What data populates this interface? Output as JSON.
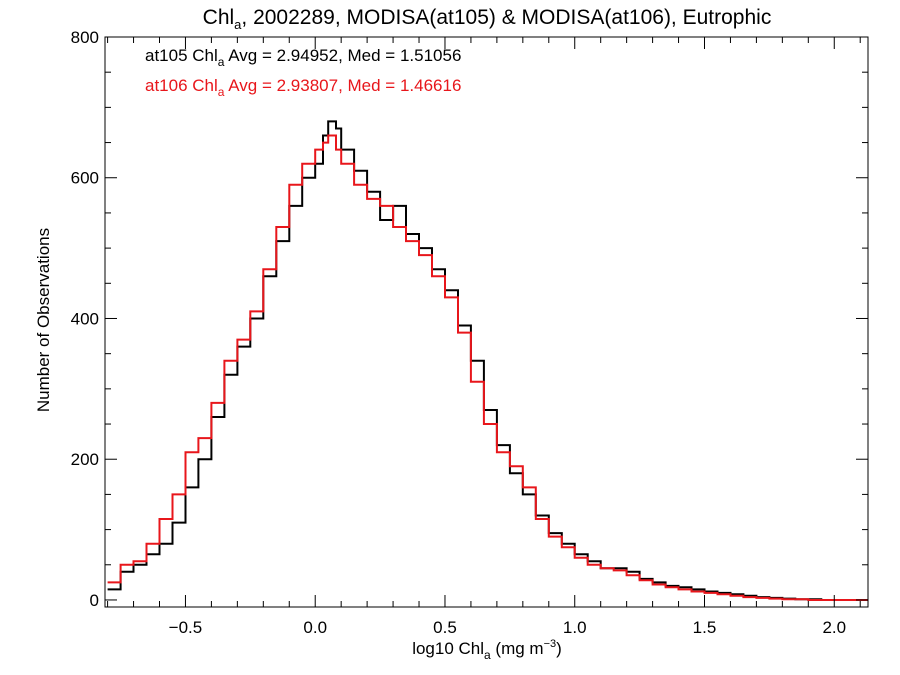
{
  "chart_data": {
    "type": "line",
    "title": {
      "main": "Chl",
      "sub": "a",
      "rest": ", 2002289, MODISA(at105) & MODISA(at106), Eutrophic"
    },
    "xlabel": {
      "main": "log10 Chl",
      "sub": "a",
      "rest": " (mg m",
      "sup": "−3",
      "end": ")"
    },
    "ylabel": "Number of Observations",
    "xlim": [
      -0.81,
      2.13
    ],
    "ylim": [
      -10,
      800
    ],
    "xticks": [
      -0.5,
      0.0,
      0.5,
      1.0,
      1.5,
      2.0
    ],
    "xtick_labels": [
      "−0.5",
      "0.0",
      "0.5",
      "1.0",
      "1.5",
      "2.0"
    ],
    "yticks": [
      0,
      200,
      400,
      600,
      800
    ],
    "ytick_labels": [
      "0",
      "200",
      "400",
      "600",
      "800"
    ],
    "annotations": [
      {
        "pre": "at105 Chl",
        "sub": "a",
        "post": " Avg = 2.94952, Med = 1.51056",
        "color": "#000000"
      },
      {
        "pre": "at106 Chl",
        "sub": "a",
        "post": " Avg = 2.93807, Med = 1.46616",
        "color": "#e8161b"
      }
    ],
    "series": [
      {
        "color": "#000000",
        "x": [
          -0.8,
          -0.75,
          -0.7,
          -0.65,
          -0.6,
          -0.55,
          -0.5,
          -0.45,
          -0.4,
          -0.35,
          -0.3,
          -0.25,
          -0.2,
          -0.15,
          -0.1,
          -0.05,
          0.0,
          0.03,
          0.05,
          0.08,
          0.1,
          0.15,
          0.2,
          0.25,
          0.3,
          0.35,
          0.4,
          0.45,
          0.5,
          0.55,
          0.6,
          0.65,
          0.7,
          0.75,
          0.8,
          0.85,
          0.9,
          0.95,
          1.0,
          1.05,
          1.1,
          1.15,
          1.2,
          1.25,
          1.3,
          1.35,
          1.4,
          1.45,
          1.5,
          1.55,
          1.6,
          1.65,
          1.7,
          1.75,
          1.8,
          1.85,
          1.9,
          1.95,
          2.0,
          2.05,
          2.1
        ],
        "y": [
          15,
          40,
          50,
          65,
          80,
          110,
          160,
          200,
          260,
          320,
          360,
          400,
          460,
          510,
          560,
          600,
          620,
          660,
          680,
          670,
          640,
          610,
          580,
          540,
          560,
          520,
          500,
          470,
          440,
          390,
          340,
          270,
          220,
          180,
          150,
          120,
          95,
          80,
          65,
          55,
          45,
          45,
          40,
          30,
          25,
          20,
          18,
          15,
          12,
          10,
          8,
          6,
          4,
          3,
          2,
          1,
          1,
          0,
          0,
          0,
          0
        ]
      },
      {
        "color": "#e8161b",
        "x": [
          -0.8,
          -0.75,
          -0.7,
          -0.65,
          -0.6,
          -0.55,
          -0.5,
          -0.45,
          -0.4,
          -0.35,
          -0.3,
          -0.25,
          -0.2,
          -0.15,
          -0.1,
          -0.05,
          0.0,
          0.03,
          0.05,
          0.08,
          0.1,
          0.15,
          0.2,
          0.25,
          0.3,
          0.35,
          0.4,
          0.45,
          0.5,
          0.55,
          0.6,
          0.65,
          0.7,
          0.75,
          0.8,
          0.85,
          0.9,
          0.95,
          1.0,
          1.05,
          1.1,
          1.15,
          1.2,
          1.25,
          1.3,
          1.35,
          1.4,
          1.45,
          1.5,
          1.55,
          1.6,
          1.65,
          1.7,
          1.75,
          1.8,
          1.85,
          1.9,
          1.95,
          2.0,
          2.05,
          2.1
        ],
        "y": [
          25,
          50,
          55,
          80,
          115,
          150,
          210,
          230,
          280,
          340,
          370,
          410,
          470,
          530,
          590,
          620,
          640,
          650,
          660,
          640,
          620,
          590,
          570,
          560,
          530,
          510,
          490,
          460,
          430,
          380,
          310,
          250,
          210,
          190,
          160,
          115,
          90,
          75,
          60,
          50,
          45,
          42,
          35,
          28,
          22,
          18,
          15,
          12,
          10,
          8,
          6,
          4,
          3,
          2,
          1,
          1,
          0,
          0,
          0,
          0,
          0
        ]
      }
    ]
  }
}
